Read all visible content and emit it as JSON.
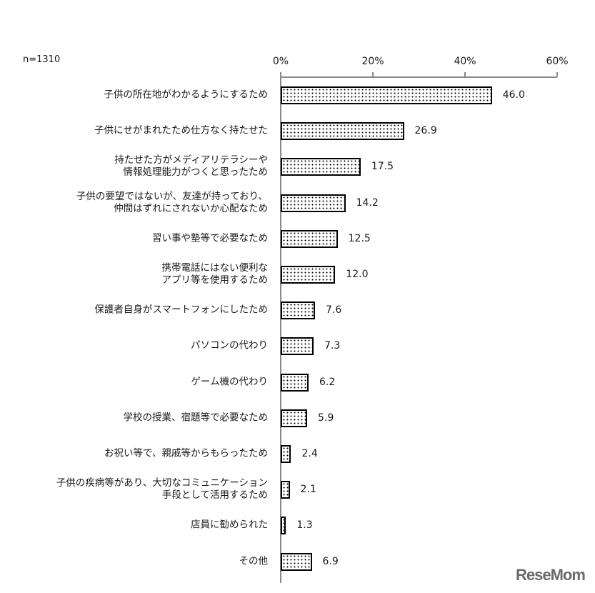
{
  "chart_data": {
    "type": "bar",
    "orientation": "horizontal",
    "title": "",
    "note": "n=1310",
    "xlabel": "",
    "ylabel": "",
    "xlim": [
      0,
      60
    ],
    "x_ticks": [
      "0%",
      "20%",
      "40%",
      "60%"
    ],
    "grid": false,
    "legend": null,
    "categories": [
      "子供の所在地がわかるようにするため",
      "子供にせがまれたため仕方なく持たせた",
      "持たせた方がメディアリテラシーや\n情報処理能力がつくと思ったため",
      "子供の要望ではないが、友達が持っており、\n仲間はずれにされないか心配なため",
      "習い事や塾等で必要なため",
      "携帯電話にはない便利な\nアプリ等を使用するため",
      "保護者自身がスマートフォンにしたため",
      "パソコンの代わり",
      "ゲーム機の代わり",
      "学校の授業、宿題等で必要なため",
      "お祝い等で、親戚等からもらったため",
      "子供の疾病等があり、大切なコミュニケーション\n手段として活用するため",
      "店員に勧められた",
      "その他"
    ],
    "values": [
      46.0,
      26.9,
      17.5,
      14.2,
      12.5,
      12.0,
      7.6,
      7.3,
      6.2,
      5.9,
      2.4,
      2.1,
      1.3,
      6.9
    ],
    "value_labels": [
      "46.0",
      "26.9",
      "17.5",
      "14.2",
      "12.5",
      "12.0",
      "7.6",
      "7.3",
      "6.2",
      "5.9",
      "2.4",
      "2.1",
      "1.3",
      "6.9"
    ]
  },
  "watermark": "ReseMom"
}
